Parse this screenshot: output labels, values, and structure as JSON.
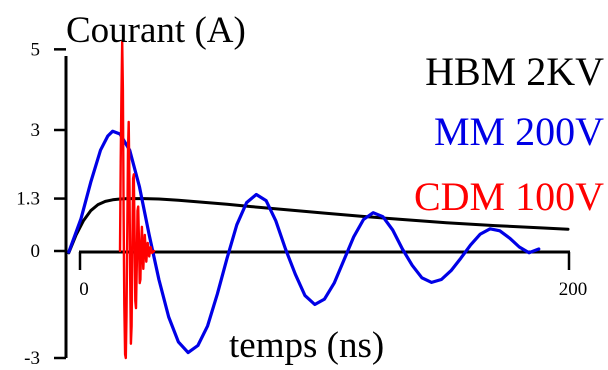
{
  "chart_data": {
    "type": "line",
    "ylabel": "Courant (A)",
    "xlabel": "temps (ns)",
    "x_ticks": [
      0,
      200
    ],
    "y_ticks": [
      5,
      3,
      1.3,
      0,
      -3
    ],
    "xlim": [
      0,
      200
    ],
    "ylim": [
      -3,
      5
    ],
    "grid": false,
    "legend_position": "top-right",
    "series": [
      {
        "name": "HBM 2KV",
        "color": "#000000",
        "x": [
          -5,
          -2,
          1,
          4,
          7,
          10,
          13,
          16,
          19,
          22,
          26,
          32,
          40,
          50,
          60,
          70,
          85,
          100,
          115,
          130,
          150,
          170,
          190,
          200
        ],
        "y": [
          -0.05,
          0.4,
          0.75,
          1.0,
          1.15,
          1.23,
          1.27,
          1.29,
          1.3,
          1.3,
          1.3,
          1.29,
          1.26,
          1.21,
          1.16,
          1.1,
          1.02,
          0.94,
          0.86,
          0.79,
          0.7,
          0.63,
          0.57,
          0.54
        ]
      },
      {
        "name": "MM 200V",
        "color": "#0000e6",
        "x": [
          -5,
          0,
          4,
          8,
          11,
          13,
          16,
          20,
          24,
          28,
          32,
          36,
          40,
          44,
          48,
          52,
          56,
          60,
          64,
          68,
          72,
          76,
          80,
          84,
          88,
          92,
          96,
          100,
          104,
          108,
          112,
          116,
          120,
          124,
          128,
          132,
          136,
          140,
          144,
          148,
          152,
          156,
          160,
          164,
          168,
          172,
          176,
          180,
          184,
          188
        ],
        "y": [
          -0.03,
          0.8,
          1.7,
          2.5,
          2.85,
          2.97,
          2.9,
          2.5,
          1.6,
          0.4,
          -0.8,
          -1.85,
          -2.55,
          -2.85,
          -2.65,
          -2.1,
          -1.2,
          -0.2,
          0.65,
          1.2,
          1.4,
          1.25,
          0.75,
          0.05,
          -0.65,
          -1.25,
          -1.5,
          -1.35,
          -0.9,
          -0.25,
          0.35,
          0.78,
          0.95,
          0.85,
          0.52,
          0.05,
          -0.4,
          -0.75,
          -0.88,
          -0.8,
          -0.55,
          -0.2,
          0.15,
          0.42,
          0.55,
          0.5,
          0.32,
          0.1,
          -0.05,
          0.05
        ]
      },
      {
        "name": "CDM 100V",
        "color": "#ff0000",
        "x": [
          16.0,
          16.3,
          16.6,
          16.9,
          17.2,
          17.5,
          17.8,
          18.1,
          18.4,
          18.7,
          19.0,
          19.3,
          19.6,
          19.9,
          20.2,
          20.5,
          20.8,
          21.1,
          21.4,
          21.7,
          22.0,
          22.3,
          22.6,
          22.9,
          23.2,
          23.5,
          23.8,
          24.1,
          24.4,
          24.7,
          25.0,
          25.6,
          26.2,
          26.8,
          27.4,
          28.0,
          28.6,
          29.2,
          30.0
        ],
        "y": [
          0,
          2.2,
          3.8,
          5.2,
          4.0,
          1.0,
          -1.5,
          -2.9,
          -3.0,
          -1.8,
          0.5,
          2.5,
          3.2,
          1.6,
          -0.8,
          -2.6,
          -2.1,
          0.2,
          1.8,
          1.9,
          0.4,
          -1.4,
          -1.6,
          -0.4,
          1.0,
          1.1,
          0.2,
          -0.9,
          -0.8,
          0.1,
          0.6,
          -0.5,
          0.4,
          -0.3,
          0.2,
          -0.15,
          0.1,
          -0.05,
          0
        ]
      }
    ]
  }
}
